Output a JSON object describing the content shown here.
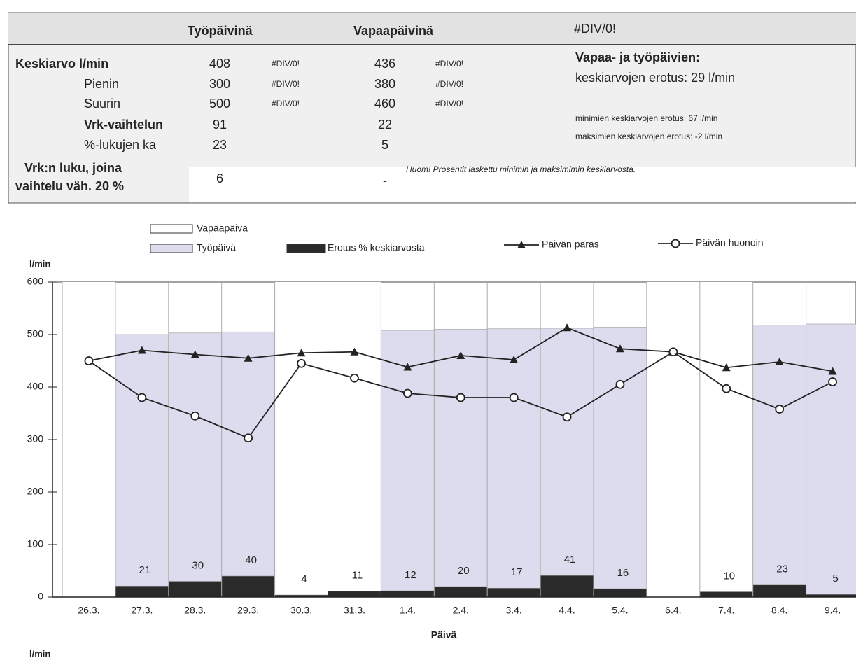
{
  "table": {
    "headers": [
      "Työpäivinä",
      "Vapaapäivinä",
      "#DIV/0!"
    ],
    "rows": [
      {
        "label": "Keskiarvo l/min",
        "work": 408,
        "work_div": "#DIV/0!",
        "free": 436,
        "free_div": "#DIV/0!"
      },
      {
        "label": "Pienin",
        "work": 300,
        "work_div": "#DIV/0!",
        "free": 380,
        "free_div": "#DIV/0!"
      },
      {
        "label": "Suurin",
        "work": 500,
        "work_div": "#DIV/0!",
        "free": 460,
        "free_div": "#DIV/0!"
      },
      {
        "label": "Vrk-vaihtelun",
        "work": 91,
        "free": 22
      },
      {
        "label": "%-lukujen  ka",
        "work": 23,
        "free": 5
      },
      {
        "label": "Vrk:n luku, joina",
        "label2": "vaihtelu väh. 20 %",
        "work": 6,
        "free": "-"
      }
    ],
    "notes": {
      "heading": "Vapaa- ja työpäivien:",
      "mean_diff": "keskiarvojen erotus:  29 l/min",
      "min_diff": "minimien keskiarvojen erotus:  67 l/min",
      "max_diff": "maksimien keskiarvojen erotus:  -2 l/min",
      "remark": "Huom! Prosentit laskettu minimin ja maksimimin  keskiarvosta."
    },
    "footer_label": "l/min"
  },
  "chart_data": {
    "type": "bar_line",
    "y_label": "l/min",
    "x_label": "Päivä",
    "categories": [
      "26.3.",
      "27.3.",
      "28.3.",
      "29.3.",
      "30.3.",
      "31.3.",
      "1.4.",
      "2.4.",
      "3.4.",
      "4.4.",
      "5.4.",
      "6.4.",
      "7.4.",
      "8.4.",
      "9.4."
    ],
    "ylim": [
      0,
      600
    ],
    "yticks": [
      0,
      100,
      200,
      300,
      400,
      500,
      600
    ],
    "grid": "vertical",
    "series": [
      {
        "name": "Vapaapäivä",
        "kind": "bar",
        "color": "#ffffff",
        "values": [
          600,
          null,
          null,
          null,
          600,
          600,
          null,
          null,
          null,
          null,
          null,
          600,
          600,
          null,
          null
        ]
      },
      {
        "name": "Työpäivä",
        "kind": "bar",
        "color": "#dcdcee",
        "values": [
          null,
          500,
          503,
          505,
          null,
          null,
          508,
          510,
          511,
          512,
          514,
          null,
          null,
          518,
          520
        ]
      },
      {
        "name": "Erotus % keskiarvosta",
        "kind": "bar",
        "color": "#2a2a2a",
        "labels": true,
        "values": [
          null,
          21,
          30,
          40,
          4,
          11,
          12,
          20,
          17,
          41,
          16,
          null,
          10,
          23,
          5
        ]
      },
      {
        "name": "Päivän paras",
        "kind": "line",
        "marker": "triangle",
        "color": "#222222",
        "values": [
          450,
          470,
          462,
          455,
          465,
          467,
          438,
          460,
          452,
          513,
          473,
          467,
          437,
          448,
          430
        ]
      },
      {
        "name": "Päivän huonoin",
        "kind": "line",
        "marker": "circle",
        "color": "#222222",
        "values": [
          450,
          380,
          345,
          303,
          445,
          417,
          388,
          380,
          380,
          343,
          405,
          467,
          397,
          358,
          410
        ]
      }
    ]
  }
}
